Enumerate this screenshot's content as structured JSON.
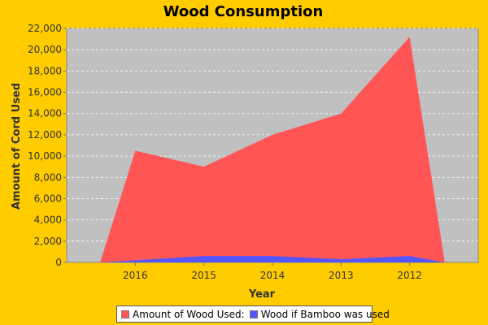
{
  "chart_data": {
    "type": "area",
    "title": "Wood Consumption",
    "xlabel": "Year",
    "ylabel": "Amount of Cord Used",
    "categories": [
      "2016",
      "2015",
      "2014",
      "2013",
      "2012"
    ],
    "series": [
      {
        "name": "Amount of Wood Used:",
        "values": [
          10500,
          9000,
          12000,
          14000,
          21200
        ],
        "color": "#FF5555"
      },
      {
        "name": "Wood if Bamboo was used",
        "values": [
          200,
          600,
          600,
          300,
          600
        ],
        "color": "#5555FF"
      }
    ],
    "ylim": [
      0,
      22000
    ],
    "yticks": [
      "0",
      "2,000",
      "4,000",
      "6,000",
      "8,000",
      "10,000",
      "12,000",
      "14,000",
      "16,000",
      "18,000",
      "20,000",
      "22,000"
    ],
    "grid": true,
    "legend": "bottom",
    "background": "#FFCC00",
    "plot_background": "#C0C0C0"
  }
}
